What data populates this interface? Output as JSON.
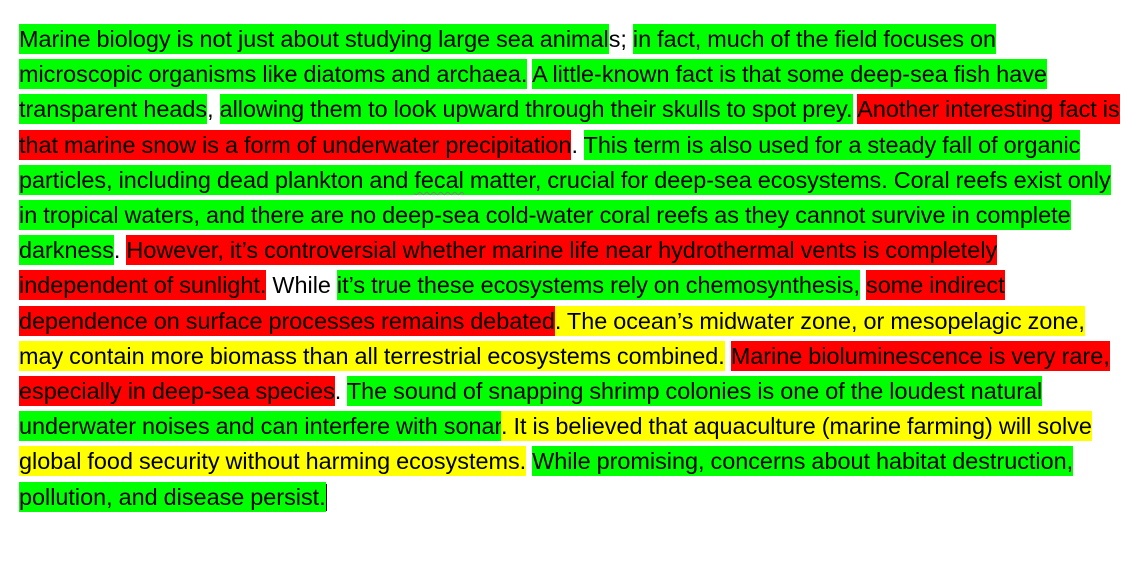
{
  "document": {
    "colors": {
      "green": "#00ff00",
      "red": "#ff0000",
      "yellow": "#ffff00"
    },
    "segments": [
      {
        "text": "Marine biology is not just about studying large sea animal",
        "highlight": "green"
      },
      {
        "text": "s; ",
        "highlight": "none"
      },
      {
        "text": "in fact, much of the field focuses on microscopic organisms like diatoms and archaea.",
        "highlight": "green"
      },
      {
        "text": " ",
        "highlight": "none"
      },
      {
        "text": "A little-known fact is that some deep-sea fish have transparent heads",
        "highlight": "green"
      },
      {
        "text": ", ",
        "highlight": "none"
      },
      {
        "text": "allowing them to look upward through their skulls to spot prey.",
        "highlight": "green"
      },
      {
        "text": " ",
        "highlight": "none"
      },
      {
        "text": "Another interesting fact is that marine snow is a form of underwater precipitation",
        "highlight": "red"
      },
      {
        "text": ". ",
        "highlight": "none"
      },
      {
        "text": "This term is also used for a steady fall of organic particles, including dead plankton and ",
        "highlight": "green"
      },
      {
        "text": "fecal",
        "highlight": "green",
        "spellcheck": true
      },
      {
        "text": " matter, crucial for deep-sea ecosystems. Coral reefs exist only in tropical waters, and there are no deep-sea cold-water coral reefs as they cannot survive in complete darkness",
        "highlight": "green"
      },
      {
        "text": ". ",
        "highlight": "none"
      },
      {
        "text": "However, it’s controversial whether marine life near hydrothermal vents is completely independent of sunlight.",
        "highlight": "red"
      },
      {
        "text": " While ",
        "highlight": "none"
      },
      {
        "text": "it’s true these ecosystems rely on chemosynthesis,",
        "highlight": "green"
      },
      {
        "text": " ",
        "highlight": "none"
      },
      {
        "text": "some indirect dependence on surface processes remains debated",
        "highlight": "red"
      },
      {
        "text": ". The ocean’s midwater zone, or mesopelagic zone, may contain more biomass than all terrestrial ecosystems combined.",
        "highlight": "yellow"
      },
      {
        "text": " ",
        "highlight": "none"
      },
      {
        "text": "Marine bioluminescence is very rare, especially in deep-sea species",
        "highlight": "red"
      },
      {
        "text": ". ",
        "highlight": "none"
      },
      {
        "text": "The sound of snapping shrimp colonies is one of the loudest natural underwater noises and can interfere with sonar",
        "highlight": "green"
      },
      {
        "text": ". It is believed that aquaculture (marine farming) will solve global food security without harming ecosystems.",
        "highlight": "yellow"
      },
      {
        "text": " ",
        "highlight": "none"
      },
      {
        "text": "While promising, concerns about habitat destruction, pollution, and disease persist.",
        "highlight": "green"
      }
    ]
  }
}
